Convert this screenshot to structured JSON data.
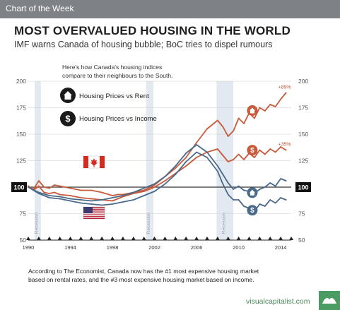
{
  "header": {
    "label": "Chart of the Week"
  },
  "title": "MOST OVERVALUED HOUSING IN THE WORLD",
  "subtitle": "IMF warns Canada of housing bubble; BoC tries to dispel rumours",
  "legend": {
    "intro_line1": "Here's how Canada's housing indices",
    "intro_line2": "compare to their neighbours to the South.",
    "rent_label": "Housing Prices vs Rent",
    "income_label": "Housing Prices vs Income"
  },
  "footnote": {
    "line1": "According to The Economist, Canada now has the #1 most expensive housing market",
    "line2": "based on rental rates, and the #3 most expensive housing market based on income."
  },
  "source": "visualcapitalist.com",
  "colors": {
    "canada": "#c85a3c",
    "usa": "#4a6a8c",
    "recession_band": "#e3e9f1",
    "grid": "#cccccc",
    "axis_text": "#555555",
    "baseline": "#333333",
    "icon": "#1a1a1a"
  },
  "icons": {
    "rent": "house-icon",
    "income": "dollar-icon",
    "canada_flag": "canada-flag-icon",
    "usa_flag": "usa-flag-icon"
  },
  "chart_data": {
    "type": "line",
    "xlim": [
      1990,
      2015
    ],
    "ylim": [
      50,
      200
    ],
    "x_ticks": [
      1990,
      1994,
      1998,
      2002,
      2006,
      2010,
      2014
    ],
    "y_ticks": [
      50,
      75,
      100,
      125,
      150,
      175,
      200
    ],
    "baseline": 100,
    "recessions": [
      {
        "label": "Recession",
        "start": 1990.6,
        "end": 1991.2
      },
      {
        "label": "Recession",
        "start": 2001.2,
        "end": 2001.9
      },
      {
        "label": "Recession",
        "start": 2007.9,
        "end": 2009.5
      }
    ],
    "series": [
      {
        "country": "canada",
        "measure": "rent",
        "end_label": "+89%",
        "x": [
          1990,
          1990.5,
          1991,
          1991.5,
          1992,
          1992.5,
          1993,
          1994,
          1995,
          1996,
          1997,
          1998,
          1998.5,
          1999,
          2000,
          2001,
          2002,
          2003,
          2004,
          2005,
          2006,
          2007,
          2008,
          2008.5,
          2009,
          2009.5,
          2010,
          2010.5,
          2011,
          2011.5,
          2012,
          2012.5,
          2013,
          2013.5,
          2014,
          2014.5
        ],
        "values": [
          101,
          98,
          106,
          100,
          99,
          102,
          101,
          99,
          97,
          97,
          95,
          92,
          93,
          93,
          95,
          97,
          102,
          110,
          118,
          128,
          142,
          155,
          163,
          157,
          148,
          153,
          165,
          160,
          170,
          165,
          175,
          172,
          178,
          176,
          183,
          189
        ]
      },
      {
        "country": "canada",
        "measure": "income",
        "end_label": "+35%",
        "x": [
          1990,
          1990.5,
          1991,
          1991.5,
          1992,
          1992.5,
          1993,
          1994,
          1995,
          1996,
          1997,
          1998,
          1998.5,
          1999,
          2000,
          2001,
          2002,
          2003,
          2004,
          2005,
          2006,
          2007,
          2008,
          2008.5,
          2009,
          2009.5,
          2010,
          2010.5,
          2011,
          2011.5,
          2012,
          2012.5,
          2013,
          2013.5,
          2014,
          2014.5
        ],
        "values": [
          101,
          97,
          101,
          95,
          94,
          95,
          93,
          92,
          90,
          89,
          88,
          87,
          89,
          91,
          94,
          96,
          100,
          106,
          113,
          120,
          128,
          133,
          136,
          130,
          124,
          126,
          131,
          126,
          132,
          128,
          135,
          131,
          136,
          133,
          138,
          135
        ]
      },
      {
        "country": "usa",
        "measure": "rent",
        "x": [
          1990,
          1991,
          1992,
          1993,
          1994,
          1995,
          1996,
          1997,
          1998,
          1999,
          2000,
          2001,
          2002,
          2003,
          2004,
          2005,
          2006,
          2007,
          2008,
          2008.5,
          2009,
          2009.5,
          2010,
          2010.5,
          2011,
          2011.5,
          2012,
          2012.5,
          2013,
          2013.5,
          2014,
          2014.5
        ],
        "values": [
          100,
          95,
          92,
          91,
          89,
          88,
          87,
          88,
          90,
          92,
          95,
          99,
          103,
          110,
          120,
          132,
          140,
          133,
          120,
          112,
          104,
          98,
          101,
          97,
          96,
          94,
          98,
          100,
          104,
          101,
          108,
          106
        ]
      },
      {
        "country": "usa",
        "measure": "income",
        "x": [
          1990,
          1991,
          1992,
          1993,
          1994,
          1995,
          1996,
          1997,
          1998,
          1999,
          2000,
          2001,
          2002,
          2003,
          2004,
          2005,
          2006,
          2007,
          2008,
          2008.5,
          2009,
          2009.5,
          2010,
          2010.5,
          2011,
          2011.5,
          2012,
          2012.5,
          2013,
          2013.5,
          2014,
          2014.5
        ],
        "values": [
          100,
          94,
          90,
          89,
          87,
          85,
          84,
          83,
          84,
          86,
          88,
          92,
          96,
          103,
          112,
          124,
          133,
          128,
          115,
          103,
          93,
          88,
          88,
          82,
          80,
          77,
          84,
          82,
          88,
          85,
          90,
          88
        ]
      }
    ]
  }
}
